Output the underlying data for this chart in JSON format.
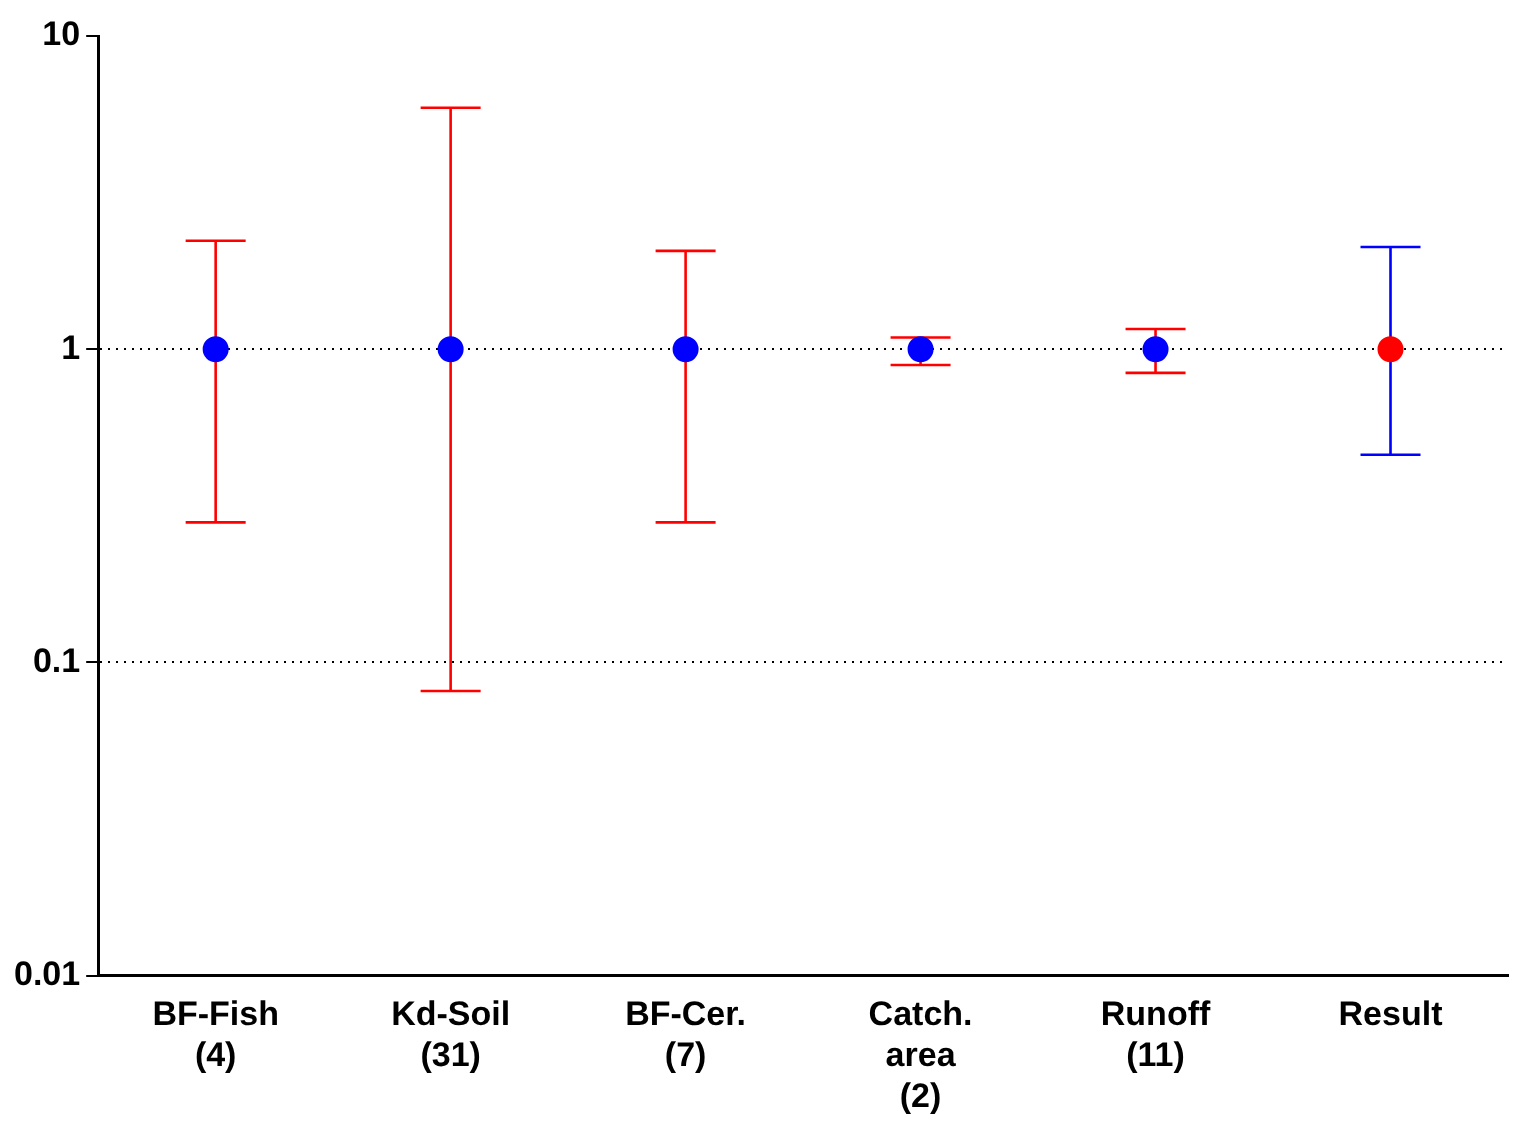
{
  "chart_data": {
    "type": "scatter",
    "categories": [
      "BF-Fish\n(4)",
      "Kd-Soil\n(31)",
      "BF-Cer.\n(7)",
      "Catch.\narea\n(2)",
      "Runoff\n(11)",
      "Result"
    ],
    "series": [
      {
        "color": "#0000ff",
        "values": [
          1,
          1,
          1,
          1,
          1,
          null
        ],
        "errors": [
          [
            0.28,
            2.22
          ],
          [
            0.081,
            5.9
          ],
          [
            0.28,
            2.06
          ],
          [
            0.89,
            1.09
          ],
          [
            0.84,
            1.16
          ],
          null
        ]
      },
      {
        "color": "#ff0000",
        "values": [
          null,
          null,
          null,
          null,
          null,
          1
        ],
        "errors": [
          null,
          null,
          null,
          null,
          null,
          [
            0.46,
            2.12
          ]
        ]
      }
    ],
    "log": true,
    "ylim": [
      0.01,
      10
    ],
    "yticks": [
      0.01,
      0.1,
      1,
      10
    ],
    "grid": "y",
    "line_style": "dotted",
    "marker": "circle",
    "legend": false
  }
}
